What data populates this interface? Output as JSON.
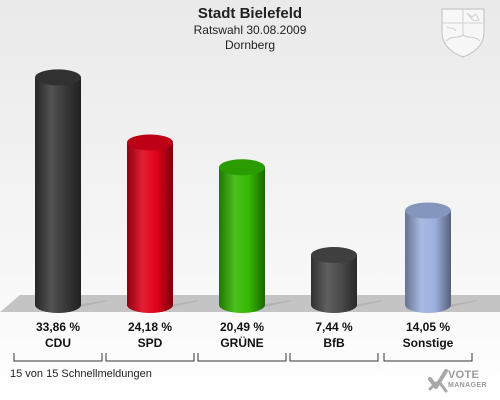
{
  "header": {
    "title": "Stadt Bielefeld",
    "subtitle": "Ratswahl 30.08.2009",
    "district": "Dornberg"
  },
  "footer": {
    "status": "15 von 15 Schnellmeldungen"
  },
  "logo": {
    "line1": "VOTE",
    "line2": "MANAGER"
  },
  "chart_data": {
    "type": "bar",
    "categories": [
      "CDU",
      "SPD",
      "GRÜNE",
      "BfB",
      "Sonstige"
    ],
    "values": [
      33.86,
      24.18,
      20.49,
      7.44,
      14.05
    ],
    "value_labels": [
      "33,86 %",
      "24,18 %",
      "20,49 %",
      "7,44 %",
      "14,05 %"
    ],
    "colors": [
      "#3a3a3a",
      "#e0001a",
      "#33b800",
      "#4a4a4a",
      "#9db0de"
    ],
    "title": "Stadt Bielefeld",
    "subtitle": "Ratswahl 30.08.2009 — Dornberg",
    "ylim": [
      0,
      36
    ],
    "grid": false,
    "legend": "none"
  }
}
